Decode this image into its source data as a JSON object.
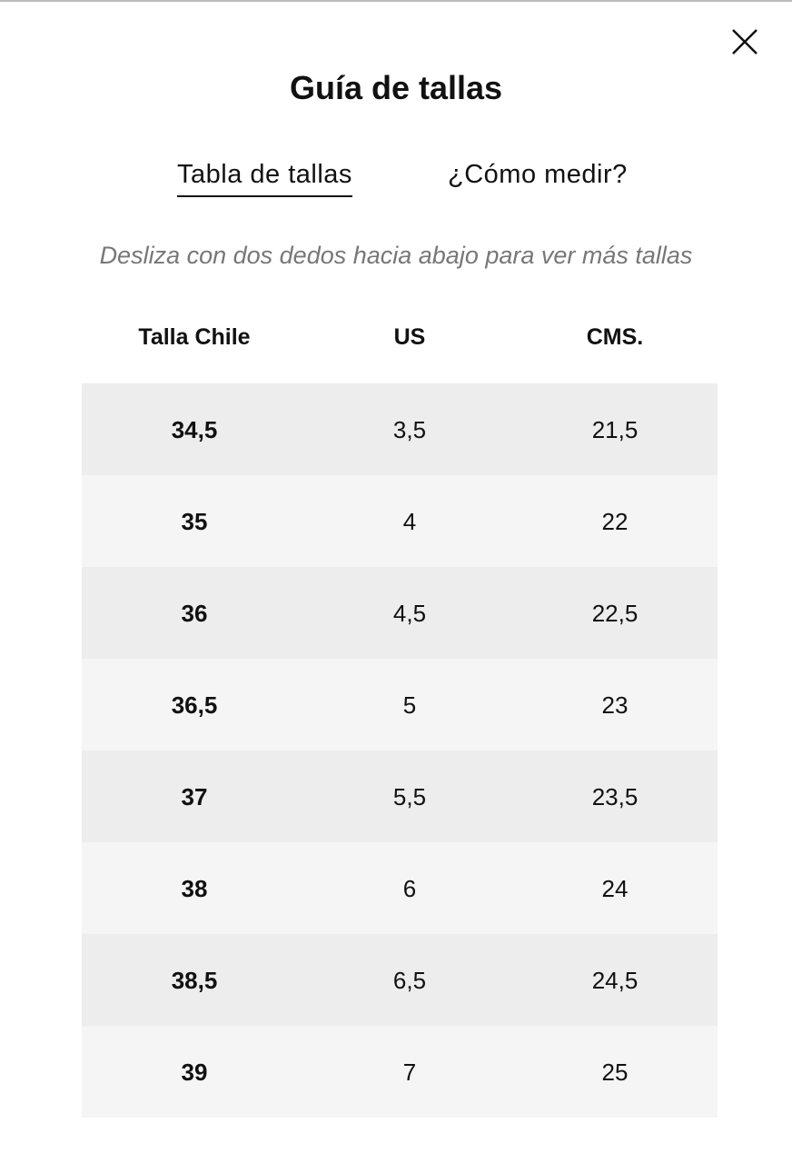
{
  "header": {
    "title": "Guía de tallas"
  },
  "tabs": [
    "Tabla de tallas",
    "¿Cómo medir?"
  ],
  "hint": "Desliza con dos dedos hacia abajo para ver más tallas",
  "table": {
    "columns": [
      "Talla Chile",
      "US",
      "CMS."
    ],
    "rows": [
      [
        "34,5",
        "3,5",
        "21,5"
      ],
      [
        "35",
        "4",
        "22"
      ],
      [
        "36",
        "4,5",
        "22,5"
      ],
      [
        "36,5",
        "5",
        "23"
      ],
      [
        "37",
        "5,5",
        "23,5"
      ],
      [
        "38",
        "6",
        "24"
      ],
      [
        "38,5",
        "6,5",
        "24,5"
      ],
      [
        "39",
        "7",
        "25"
      ]
    ]
  }
}
